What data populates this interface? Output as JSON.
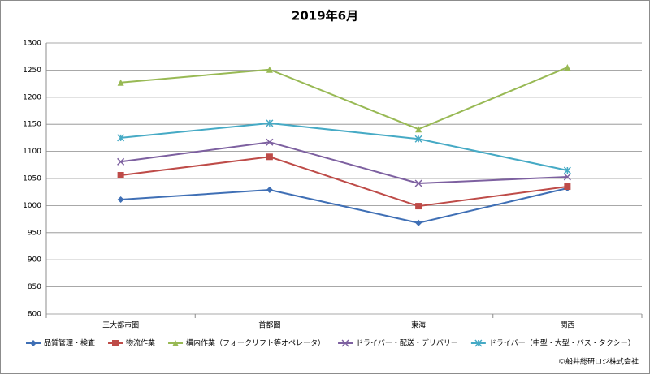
{
  "chart_data": {
    "type": "line",
    "title": "2019年6月",
    "categories": [
      "三大都市圏",
      "首都圏",
      "東海",
      "関西"
    ],
    "series": [
      {
        "name": "品質管理・検査",
        "color": "#3f6fb5",
        "marker": "diamond",
        "values": [
          1011,
          1029,
          968,
          1032
        ]
      },
      {
        "name": "物流作業",
        "color": "#be4b48",
        "marker": "square",
        "values": [
          1056,
          1090,
          999,
          1035
        ]
      },
      {
        "name": "構内作業（フォークリフト等オペレータ）",
        "color": "#98b954",
        "marker": "triangle",
        "values": [
          1227,
          1251,
          1141,
          1255
        ]
      },
      {
        "name": "ドライバー・配送・デリバリー",
        "color": "#7d60a0",
        "marker": "x",
        "values": [
          1081,
          1117,
          1041,
          1053
        ]
      },
      {
        "name": "ドライバー（中型・大型・バス・タクシー）",
        "color": "#46aac5",
        "marker": "star",
        "values": [
          1125,
          1152,
          1123,
          1065
        ]
      }
    ],
    "ylim": [
      800,
      1300
    ],
    "yticks": [
      800,
      850,
      900,
      950,
      1000,
      1050,
      1100,
      1150,
      1200,
      1250,
      1300
    ],
    "grid": true,
    "legend": "bottom"
  },
  "credit": "©船井総研ロジ株式会社"
}
